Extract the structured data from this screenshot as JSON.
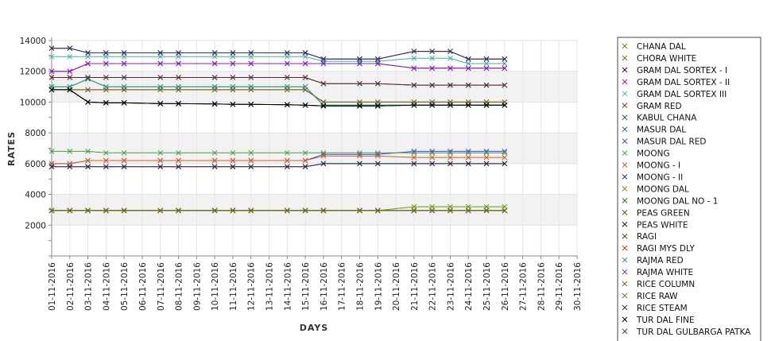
{
  "chart_data": {
    "type": "line",
    "xlabel": "DAYS",
    "ylabel": "RATES",
    "ylim": [
      0,
      14000
    ],
    "yticks": [
      2000,
      4000,
      6000,
      8000,
      10000,
      12000,
      14000
    ],
    "grid": true,
    "legend_position": "right",
    "categories": [
      "01-11-2016",
      "02-11-2016",
      "03-11-2016",
      "04-11-2016",
      "05-11-2016",
      "06-11-2016",
      "07-11-2016",
      "08-11-2016",
      "09-11-2016",
      "10-11-2016",
      "11-11-2016",
      "12-11-2016",
      "13-11-2016",
      "14-11-2016",
      "15-11-2016",
      "16-11-2016",
      "17-11-2016",
      "18-11-2016",
      "19-11-2016",
      "20-11-2016",
      "21-11-2016",
      "22-11-2016",
      "23-11-2016",
      "24-11-2016",
      "25-11-2016",
      "26-11-2016",
      "27-11-2016",
      "28-11-2016",
      "29-11-2016",
      "30-11-2016"
    ],
    "series": [
      {
        "name": "CHANA DAL",
        "color": "#808000",
        "values": [
          5800,
          5800,
          5800,
          5800,
          5800,
          null,
          5800,
          5800,
          null,
          5800,
          5800,
          5800,
          null,
          5800,
          5800,
          6000,
          null,
          6000,
          6000,
          null,
          6000,
          6000,
          6000,
          6000,
          6000,
          6000,
          null,
          null,
          null,
          null
        ]
      },
      {
        "name": "CHORA WHITE",
        "color": "#806000",
        "values": [
          2950,
          2950,
          2950,
          2950,
          2950,
          null,
          2950,
          2950,
          null,
          2950,
          2950,
          2950,
          null,
          2950,
          2950,
          2950,
          null,
          2950,
          2950,
          null,
          2950,
          2950,
          2950,
          2950,
          2950,
          2950,
          null,
          null,
          null,
          null
        ]
      },
      {
        "name": "GRAM DAL SORTEX  - I",
        "color": "#400040",
        "values": [
          13500,
          13500,
          13200,
          13200,
          13200,
          null,
          13200,
          13200,
          null,
          13200,
          13200,
          13200,
          null,
          13200,
          13200,
          12800,
          null,
          12800,
          12800,
          null,
          13300,
          13300,
          13300,
          12800,
          12800,
          12800,
          null,
          null,
          null,
          null
        ]
      },
      {
        "name": "GRAM DAL SORTEX - II",
        "color": "#c000c0",
        "values": [
          12000,
          12000,
          12500,
          12500,
          12500,
          null,
          12500,
          12500,
          null,
          12500,
          12500,
          12500,
          null,
          12500,
          12500,
          12500,
          null,
          12500,
          12500,
          null,
          12200,
          12200,
          12200,
          12200,
          12200,
          12200,
          null,
          null,
          null,
          null
        ]
      },
      {
        "name": "GRAM DAL SORTEX III",
        "color": "#40b0a0",
        "values": [
          12950,
          12950,
          12950,
          12950,
          12950,
          null,
          12950,
          12950,
          null,
          12950,
          12950,
          12950,
          null,
          12950,
          12950,
          12650,
          null,
          12650,
          12650,
          null,
          12850,
          12850,
          12850,
          12500,
          12500,
          12500,
          null,
          null,
          null,
          null
        ]
      },
      {
        "name": "GRAM RED",
        "color": "#804020",
        "values": [
          10800,
          10800,
          10800,
          10800,
          10800,
          null,
          10800,
          10800,
          null,
          10800,
          10800,
          10800,
          null,
          10800,
          10800,
          10000,
          null,
          10000,
          10000,
          null,
          10000,
          10000,
          10000,
          10000,
          10000,
          10000,
          null,
          null,
          null,
          null
        ]
      },
      {
        "name": "KABUL CHANA",
        "color": "#006040",
        "values": [
          10800,
          10800,
          10000,
          9950,
          9950,
          null,
          9900,
          9900,
          null,
          9880,
          9850,
          9850,
          null,
          9830,
          9800,
          9750,
          null,
          9750,
          9750,
          null,
          9800,
          9800,
          9800,
          9800,
          9800,
          9800,
          null,
          null,
          null,
          null
        ]
      },
      {
        "name": "MASUR DAL",
        "color": "#207070",
        "values": [
          11000,
          11000,
          11500,
          11000,
          11000,
          null,
          11000,
          11000,
          null,
          11000,
          11000,
          11000,
          null,
          11000,
          11000,
          9800,
          null,
          9800,
          9800,
          null,
          9800,
          9800,
          9800,
          9800,
          9800,
          9800,
          null,
          null,
          null,
          null
        ]
      },
      {
        "name": "MASUR DAL RED",
        "color": "#4040ff",
        "values": [
          6000,
          6000,
          6200,
          6200,
          6200,
          null,
          6200,
          6200,
          null,
          6200,
          6200,
          6200,
          null,
          6200,
          6200,
          6600,
          null,
          6600,
          6600,
          null,
          6800,
          6800,
          6800,
          6800,
          6800,
          6800,
          null,
          null,
          null,
          null
        ]
      },
      {
        "name": "MOONG",
        "color": "#40a040",
        "values": [
          6800,
          6800,
          6800,
          6700,
          6700,
          null,
          6700,
          6700,
          null,
          6700,
          6700,
          6700,
          null,
          6700,
          6700,
          6700,
          null,
          6700,
          6700,
          null,
          6700,
          6700,
          6700,
          6700,
          6700,
          6700,
          null,
          null,
          null,
          null
        ]
      },
      {
        "name": "MOONG - I",
        "color": "#d06020",
        "values": [
          6000,
          6000,
          6200,
          6200,
          6200,
          null,
          6200,
          6200,
          null,
          6200,
          6200,
          6200,
          null,
          6200,
          6200,
          6500,
          null,
          6500,
          6500,
          null,
          6400,
          6400,
          6400,
          6400,
          6400,
          6400,
          null,
          null,
          null,
          null
        ]
      },
      {
        "name": "MOONG - II",
        "color": "#202060",
        "values": [
          5800,
          5800,
          5800,
          5800,
          5800,
          null,
          5800,
          5800,
          null,
          5800,
          5800,
          5800,
          null,
          5800,
          5800,
          6000,
          null,
          6000,
          6000,
          null,
          6000,
          6000,
          6000,
          6000,
          6000,
          6000,
          null,
          null,
          null,
          null
        ]
      },
      {
        "name": "MOONG DAL",
        "color": "#60a000",
        "values": [
          2950,
          2950,
          2950,
          2950,
          2950,
          null,
          2950,
          2950,
          null,
          2950,
          2950,
          2950,
          null,
          2950,
          2950,
          2950,
          null,
          2950,
          2950,
          null,
          3200,
          3200,
          3200,
          3200,
          3200,
          3200,
          null,
          null,
          null,
          null
        ]
      },
      {
        "name": "MOONG DAL NO - 1",
        "color": "#208020",
        "values": [
          11600,
          11600,
          11600,
          11600,
          11600,
          null,
          11600,
          11600,
          null,
          11600,
          11600,
          11600,
          null,
          11600,
          11600,
          11200,
          null,
          11200,
          11200,
          null,
          11100,
          11100,
          11100,
          11100,
          11100,
          11100,
          null,
          null,
          null,
          null
        ]
      },
      {
        "name": "PEAS GREEN",
        "color": "#405000",
        "values": [
          2950,
          2950,
          2950,
          2950,
          2950,
          null,
          2950,
          2950,
          null,
          2950,
          2950,
          2950,
          null,
          2950,
          2950,
          2950,
          null,
          2950,
          2950,
          null,
          2950,
          2950,
          2950,
          2950,
          2950,
          2950,
          null,
          null,
          null,
          null
        ]
      },
      {
        "name": "PEAS WHITE",
        "color": "#003000",
        "values": [
          10800,
          10800,
          10000,
          9950,
          9950,
          null,
          9900,
          9900,
          null,
          9880,
          9850,
          9850,
          null,
          9830,
          9800,
          9750,
          null,
          9750,
          9750,
          null,
          9800,
          9800,
          9800,
          9800,
          9800,
          9800,
          null,
          null,
          null,
          null
        ]
      },
      {
        "name": "RAGI",
        "color": "#403000",
        "values": [
          2950,
          2950,
          2950,
          2950,
          2950,
          null,
          2950,
          2950,
          null,
          2950,
          2950,
          2950,
          null,
          2950,
          2950,
          2950,
          null,
          2950,
          2950,
          null,
          2950,
          2950,
          2950,
          2950,
          2950,
          2950,
          null,
          null,
          null,
          null
        ]
      },
      {
        "name": "RAGI MYS DLY",
        "color": "#c04000",
        "values": [
          2950,
          2950,
          2950,
          2950,
          2950,
          null,
          2950,
          2950,
          null,
          2950,
          2950,
          2950,
          null,
          2950,
          2950,
          2950,
          null,
          2950,
          2950,
          null,
          2950,
          2950,
          2950,
          2950,
          2950,
          2950,
          null,
          null,
          null,
          null
        ]
      },
      {
        "name": "RAJMA RED",
        "color": "#20a080",
        "values": [
          11000,
          11000,
          11500,
          11000,
          11000,
          null,
          11000,
          11000,
          null,
          11000,
          11000,
          11000,
          null,
          11000,
          11000,
          9800,
          null,
          9800,
          9800,
          null,
          9800,
          9800,
          9800,
          9800,
          9800,
          9800,
          null,
          null,
          null,
          null
        ]
      },
      {
        "name": "RAJMA WHITE",
        "color": "#8020c0",
        "values": [
          12000,
          12000,
          12500,
          12500,
          12500,
          null,
          12500,
          12500,
          null,
          12500,
          12500,
          12500,
          null,
          12500,
          12500,
          12500,
          null,
          12500,
          12500,
          null,
          12200,
          12200,
          12200,
          12200,
          12200,
          12200,
          null,
          null,
          null,
          null
        ]
      },
      {
        "name": "RICE COLUMN",
        "color": "#806020",
        "values": [
          10800,
          10800,
          10800,
          10800,
          10800,
          null,
          10800,
          10800,
          null,
          10800,
          10800,
          10800,
          null,
          10800,
          10800,
          10000,
          null,
          10000,
          10000,
          null,
          10000,
          10000,
          10000,
          10000,
          10000,
          10000,
          null,
          null,
          null,
          null
        ]
      },
      {
        "name": "RICE RAW",
        "color": "#607020",
        "values": [
          2950,
          2950,
          2950,
          2950,
          2950,
          null,
          2950,
          2950,
          null,
          2950,
          2950,
          2950,
          null,
          2950,
          2950,
          2950,
          null,
          2950,
          2950,
          null,
          2950,
          2950,
          2950,
          2950,
          2950,
          2950,
          null,
          null,
          null,
          null
        ]
      },
      {
        "name": "RICE STEAM",
        "color": "#303060",
        "values": [
          13500,
          13500,
          13200,
          13200,
          13200,
          null,
          13200,
          13200,
          null,
          13200,
          13200,
          13200,
          null,
          13200,
          13200,
          12800,
          null,
          12800,
          12800,
          null,
          13300,
          13300,
          13300,
          12800,
          12800,
          12800,
          null,
          null,
          null,
          null
        ]
      },
      {
        "name": "TUR DAL FINE",
        "color": "#000000",
        "values": [
          10800,
          10800,
          10000,
          9950,
          9950,
          null,
          9900,
          9900,
          null,
          9880,
          9850,
          9850,
          null,
          9830,
          9800,
          9750,
          null,
          9750,
          9750,
          null,
          9800,
          9800,
          9800,
          9800,
          9800,
          9800,
          null,
          null,
          null,
          null
        ]
      },
      {
        "name": "TUR DAL GULBARGA PATKA",
        "color": "#602040",
        "values": [
          11600,
          11600,
          11600,
          11600,
          11600,
          null,
          11600,
          11600,
          null,
          11600,
          11600,
          11600,
          null,
          11600,
          11600,
          11200,
          null,
          11200,
          11200,
          null,
          11100,
          11100,
          11100,
          11100,
          11100,
          11100,
          null,
          null,
          null,
          null
        ]
      }
    ]
  }
}
